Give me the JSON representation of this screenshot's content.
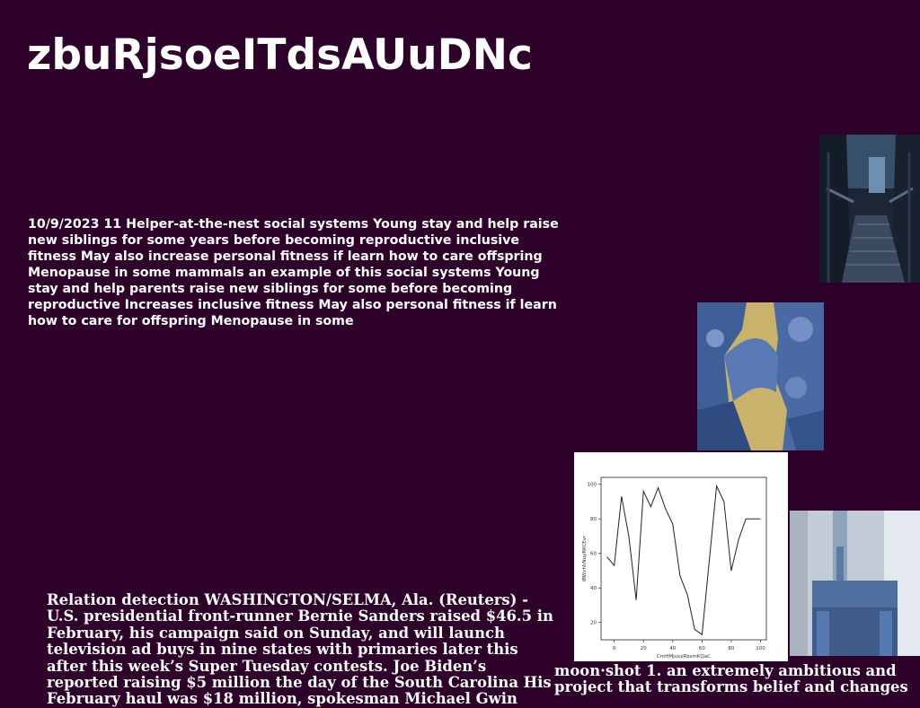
{
  "title": "zbuRjsoeITdsAUuDNc",
  "paragraphs": {
    "p1": "10/9/2023 11 Helper-at-the-nest social systems Young stay and help raise new siblings for some years before becoming reproductive inclusive fitness May also increase personal fitness if learn how to care offspring Menopause in some mammals an example of this social systems Young stay and help parents raise new siblings for some before becoming reproductive Increases inclusive fitness May also personal fitness if learn how to care for offspring Menopause in some",
    "p2": "Relation detection WASHINGTON/SELMA, Ala. (Reuters) - U.S. presidential front-runner Bernie Sanders raised $46.5 in February, his campaign said on Sunday, and will launch television ad buys in nine states with primaries later this after this week’s Super Tuesday contests. Joe Biden’s reported raising $5 million the day of the South Carolina His February haul was $18 million, spokesman Michael Gwin",
    "p3": "moon·shot 1. an extremely ambitious and project that transforms belief and changes"
  },
  "images": {
    "boardwalk": "bridge-walkway-photo",
    "rocks": "rock-arch-photo",
    "vase": "vase-on-table-photo"
  },
  "chart_data": {
    "type": "line",
    "xlabel": "CmHMjusxRbsmKQaC",
    "ylabel": "iBWxhhNuyRKCEvr",
    "x": [
      -5,
      0,
      5,
      10,
      15,
      20,
      25,
      30,
      35,
      40,
      45,
      50,
      55,
      60,
      65,
      70,
      75,
      80,
      85,
      90,
      95,
      100
    ],
    "values": [
      58,
      53,
      93,
      70,
      33,
      96,
      87,
      98,
      86,
      77,
      47,
      36,
      16,
      13,
      56,
      99,
      90,
      50,
      68,
      80,
      80,
      80
    ],
    "xticks": [
      0,
      20,
      40,
      60,
      80,
      100
    ],
    "yticks": [
      20,
      40,
      60,
      80,
      100
    ],
    "xlim": [
      -9,
      104
    ],
    "ylim": [
      10,
      104
    ]
  }
}
